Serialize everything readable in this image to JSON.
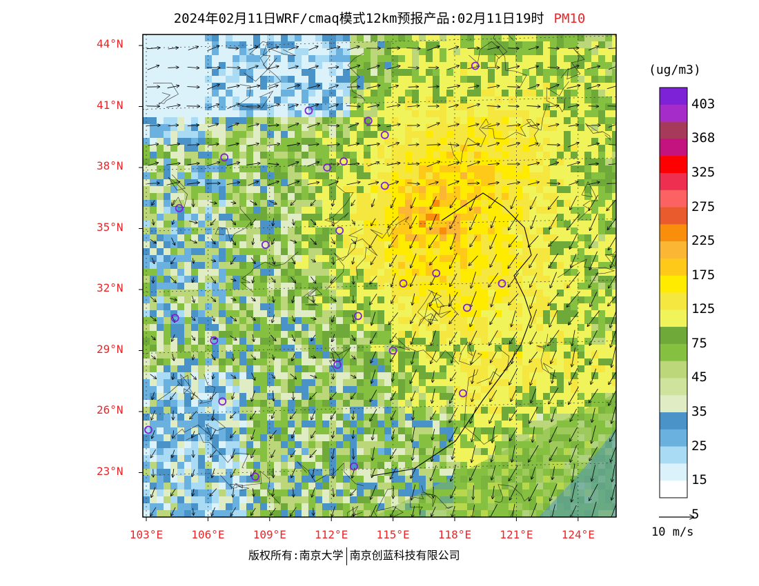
{
  "title": {
    "main": "2024年02月11日WRF/cmaq模式12km预报产品:02月11日19时",
    "pollutant": "PM10"
  },
  "map": {
    "lat_labels": [
      "44°N",
      "41°N",
      "38°N",
      "35°N",
      "32°N",
      "29°N",
      "26°N",
      "23°N"
    ],
    "lon_labels": [
      "103°E",
      "106°E",
      "109°E",
      "112°E",
      "115°E",
      "118°E",
      "121°E",
      "124°E"
    ],
    "lat_values": [
      44,
      41,
      38,
      35,
      32,
      29,
      26,
      23
    ],
    "lon_values": [
      103,
      106,
      109,
      112,
      115,
      118,
      121,
      124
    ]
  },
  "legend": {
    "unit": "(ug/m3)",
    "labels": [
      "403",
      "368",
      "325",
      "275",
      "225",
      "175",
      "125",
      "75",
      "45",
      "35",
      "25",
      "15",
      "5"
    ],
    "colors": [
      "#7d22d6",
      "#a52cc9",
      "#a63a5b",
      "#c4127e",
      "#ff0000",
      "#ef2f50",
      "#fc6262",
      "#e95a2c",
      "#f98d0c",
      "#fbb634",
      "#fec918",
      "#feeb00",
      "#f6e640",
      "#f1f35a",
      "#6ea93a",
      "#86c041",
      "#bbd77a",
      "#cee39b",
      "#e0ecc3",
      "#4a93c8",
      "#6bb1df",
      "#a9dbf4",
      "#dcf2fb",
      "#ffffff"
    ],
    "wind_reference": "10 m/s"
  },
  "cities": [
    {
      "lon": 119.0,
      "lat": 43.0
    },
    {
      "lon": 110.9,
      "lat": 40.8
    },
    {
      "lon": 113.8,
      "lat": 40.3
    },
    {
      "lon": 114.6,
      "lat": 39.6
    },
    {
      "lon": 106.8,
      "lat": 38.5
    },
    {
      "lon": 111.8,
      "lat": 38.0
    },
    {
      "lon": 112.6,
      "lat": 38.3
    },
    {
      "lon": 114.6,
      "lat": 37.1
    },
    {
      "lon": 104.6,
      "lat": 36.0
    },
    {
      "lon": 112.4,
      "lat": 34.9
    },
    {
      "lon": 108.8,
      "lat": 34.2
    },
    {
      "lon": 115.5,
      "lat": 32.3
    },
    {
      "lon": 117.1,
      "lat": 32.8
    },
    {
      "lon": 120.3,
      "lat": 32.3
    },
    {
      "lon": 118.6,
      "lat": 31.1
    },
    {
      "lon": 104.4,
      "lat": 30.6
    },
    {
      "lon": 113.3,
      "lat": 30.7
    },
    {
      "lon": 106.3,
      "lat": 29.5
    },
    {
      "lon": 112.3,
      "lat": 28.3
    },
    {
      "lon": 115.0,
      "lat": 29.0
    },
    {
      "lon": 118.4,
      "lat": 26.9
    },
    {
      "lon": 106.7,
      "lat": 26.5
    },
    {
      "lon": 103.1,
      "lat": 25.1
    },
    {
      "lon": 108.3,
      "lat": 22.8
    },
    {
      "lon": 113.1,
      "lat": 23.3
    }
  ],
  "copyright": {
    "left": "版权所有:南京大学",
    "right": "南京创蓝科技有限公司"
  }
}
